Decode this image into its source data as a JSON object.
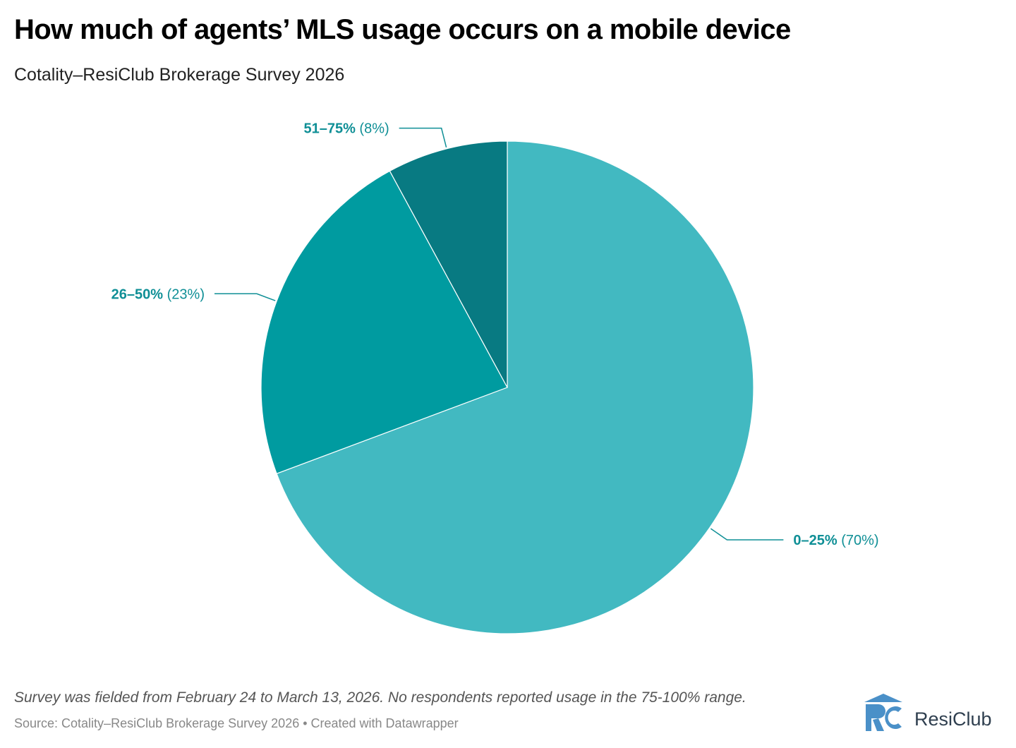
{
  "header": {
    "title": "How much of agents’ MLS usage occurs on a mobile device",
    "subtitle": "Cotality–ResiClub Brokerage Survey 2026"
  },
  "chart_data": {
    "type": "pie",
    "title": "How much of agents’ MLS usage occurs on a mobile device",
    "subtitle": "Cotality–ResiClub Brokerage Survey 2026",
    "slices": [
      {
        "label": "0–25%",
        "value": 70,
        "value_label": "(70%)",
        "color": "#42b9c1"
      },
      {
        "label": "26–50%",
        "value": 23,
        "value_label": "(23%)",
        "color": "#009ba0"
      },
      {
        "label": "51–75%",
        "value": 8,
        "value_label": "(8%)",
        "color": "#087a82"
      }
    ],
    "label_color": "#0f8f96"
  },
  "footer": {
    "note": "Survey was fielded from February 24 to March 13, 2026. No respondents reported usage in the 75-100% range.",
    "source": "Source: Cotality–ResiClub Brokerage Survey 2026 • Created with Datawrapper",
    "logo_text": "ResiClub"
  },
  "colors": {
    "logo_blue": "#4a90c8",
    "logo_text": "#2f3f4f"
  }
}
